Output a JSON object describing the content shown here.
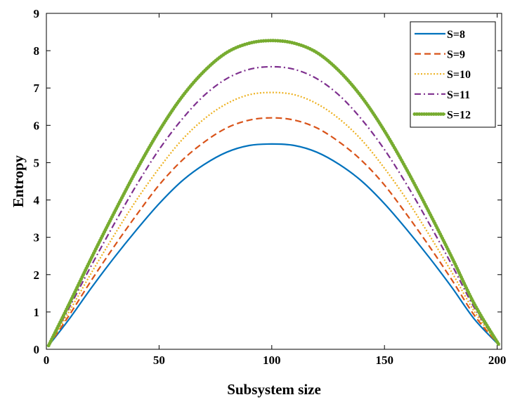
{
  "chart_data": {
    "type": "line",
    "title": "",
    "xlabel": "Subsystem size",
    "ylabel": "Entropy",
    "xlim": [
      0,
      202
    ],
    "ylim": [
      0,
      9
    ],
    "xticks": [
      0,
      50,
      100,
      150,
      200
    ],
    "yticks": [
      0,
      1,
      2,
      3,
      4,
      5,
      6,
      7,
      8,
      9
    ],
    "grid": false,
    "legend_position": "top-right",
    "x": [
      1,
      10,
      20,
      30,
      40,
      50,
      60,
      70,
      80,
      90,
      100,
      110,
      120,
      130,
      140,
      150,
      160,
      170,
      180,
      190,
      201
    ],
    "series": [
      {
        "name": "S=8",
        "color": "#0072BD",
        "dash": "solid",
        "values": [
          0.1,
          0.8,
          1.65,
          2.45,
          3.2,
          3.9,
          4.5,
          4.95,
          5.28,
          5.46,
          5.5,
          5.46,
          5.28,
          4.95,
          4.5,
          3.9,
          3.2,
          2.45,
          1.65,
          0.8,
          0.1
        ]
      },
      {
        "name": "S=9",
        "color": "#D95319",
        "dash": "dashed",
        "values": [
          0.1,
          0.9,
          1.85,
          2.75,
          3.6,
          4.4,
          5.05,
          5.55,
          5.93,
          6.14,
          6.2,
          6.14,
          5.93,
          5.55,
          5.05,
          4.4,
          3.6,
          2.75,
          1.85,
          0.9,
          0.1
        ]
      },
      {
        "name": "S=10",
        "color": "#EDB120",
        "dash": "dotted",
        "values": [
          0.1,
          1.0,
          2.05,
          3.05,
          4.0,
          4.85,
          5.6,
          6.17,
          6.58,
          6.82,
          6.88,
          6.82,
          6.58,
          6.17,
          5.6,
          4.85,
          4.0,
          3.05,
          2.05,
          1.0,
          0.1
        ]
      },
      {
        "name": "S=11",
        "color": "#7E2F8E",
        "dash": "dashdot",
        "values": [
          0.1,
          1.1,
          2.25,
          3.35,
          4.4,
          5.35,
          6.15,
          6.8,
          7.25,
          7.5,
          7.57,
          7.5,
          7.25,
          6.8,
          6.15,
          5.35,
          4.4,
          3.35,
          2.25,
          1.1,
          0.1
        ]
      },
      {
        "name": "S=12",
        "color": "#77AC30",
        "dash": "solid-dots",
        "values": [
          0.1,
          1.2,
          2.45,
          3.65,
          4.8,
          5.85,
          6.75,
          7.45,
          7.95,
          8.2,
          8.27,
          8.2,
          7.95,
          7.45,
          6.75,
          5.85,
          4.8,
          3.65,
          2.45,
          1.2,
          0.1
        ]
      }
    ]
  }
}
